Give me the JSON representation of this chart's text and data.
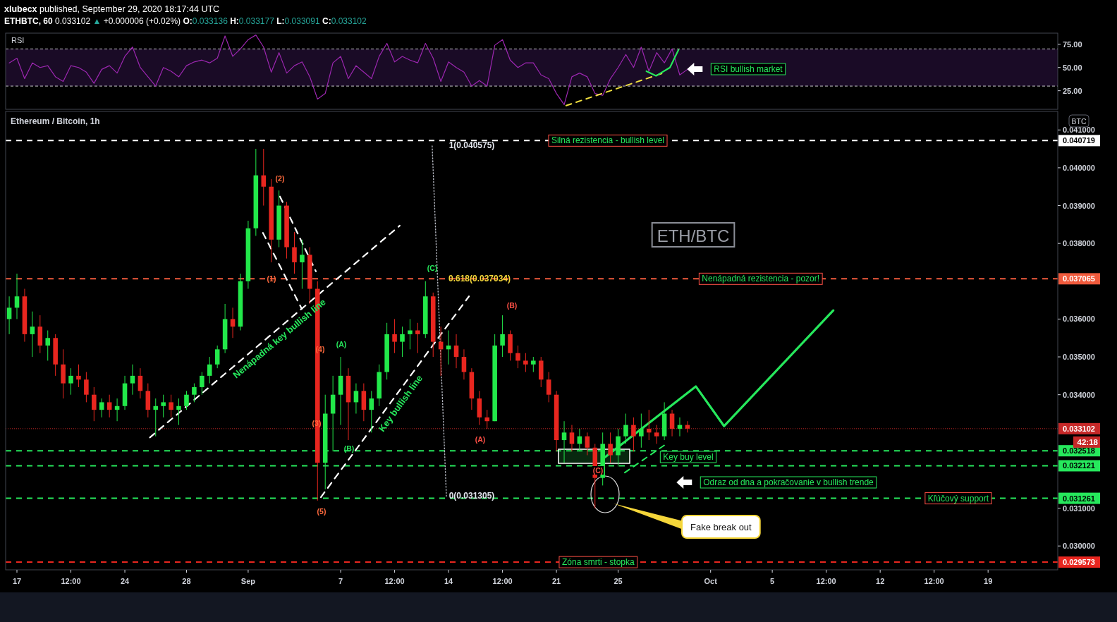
{
  "chart_data": [
    {
      "type": "line",
      "title": "xlubecx published, September 29, 2020 18:17:44 UTC",
      "subtitle": "ETHBTC, 60 0.033102 ▲ +0.000006 (+0.02%) O:0.033136 H:0.033177 L:0.033091 C:0.033102",
      "xlim": [
        "2020-08-16T06:25",
        "2020-10-23T12:30"
      ],
      "ylim": [
        5,
        87
      ],
      "yticks": [
        {
          "value": 25,
          "label": "25.00"
        },
        {
          "value": 50,
          "label": "50.00"
        },
        {
          "value": 75,
          "label": "75.00"
        }
      ],
      "tick_labels": "y",
      "x": [
        "2020-08-16T12:00",
        "2020-08-17T00:00",
        "2020-08-17T12:00",
        "2020-08-18T00:00",
        "2020-08-18T12:00",
        "2020-08-19T00:00",
        "2020-08-19T12:00",
        "2020-08-20T00:00",
        "2020-08-20T12:00",
        "2020-08-21T00:00",
        "2020-08-21T12:00",
        "2020-08-22T00:00",
        "2020-08-22T12:00",
        "2020-08-23T00:00",
        "2020-08-23T12:00",
        "2020-08-24T00:00",
        "2020-08-24T12:00",
        "2020-08-25T00:00",
        "2020-08-25T12:00",
        "2020-08-26T00:00",
        "2020-08-26T12:00",
        "2020-08-27T00:00",
        "2020-08-27T12:00",
        "2020-08-28T00:00",
        "2020-08-28T12:00",
        "2020-08-29T00:00",
        "2020-08-29T12:00",
        "2020-08-30T00:00",
        "2020-08-30T12:00",
        "2020-08-31T00:00",
        "2020-08-31T12:00",
        "2020-09-01T00:00",
        "2020-09-01T12:00",
        "2020-09-02T00:00",
        "2020-09-02T12:00",
        "2020-09-03T00:00",
        "2020-09-03T12:00",
        "2020-09-04T00:00",
        "2020-09-04T12:00",
        "2020-09-05T00:00",
        "2020-09-05T12:00",
        "2020-09-06T00:00",
        "2020-09-06T12:00",
        "2020-09-07T00:00",
        "2020-09-07T12:00",
        "2020-09-08T00:00",
        "2020-09-08T12:00",
        "2020-09-09T00:00",
        "2020-09-09T12:00",
        "2020-09-10T00:00",
        "2020-09-10T12:00",
        "2020-09-11T00:00",
        "2020-09-11T12:00",
        "2020-09-12T00:00",
        "2020-09-12T12:00",
        "2020-09-13T00:00",
        "2020-09-13T12:00",
        "2020-09-14T00:00",
        "2020-09-14T12:00",
        "2020-09-15T00:00",
        "2020-09-15T12:00",
        "2020-09-16T00:00",
        "2020-09-16T12:00",
        "2020-09-17T00:00",
        "2020-09-17T12:00",
        "2020-09-18T00:00",
        "2020-09-18T12:00",
        "2020-09-19T00:00",
        "2020-09-19T12:00",
        "2020-09-20T00:00",
        "2020-09-20T12:00",
        "2020-09-21T00:00",
        "2020-09-21T12:00",
        "2020-09-22T00:00",
        "2020-09-22T12:00",
        "2020-09-23T00:00",
        "2020-09-23T12:00",
        "2020-09-24T00:00",
        "2020-09-24T12:00",
        "2020-09-25T00:00",
        "2020-09-25T12:00",
        "2020-09-26T00:00",
        "2020-09-26T12:00",
        "2020-09-27T00:00",
        "2020-09-27T12:00",
        "2020-09-28T00:00",
        "2020-09-28T12:00",
        "2020-09-29T00:00",
        "2020-09-29T12:00"
      ],
      "series": [
        {
          "color": "#9c27b0",
          "values": [
            55,
            60,
            38,
            55,
            50,
            52,
            40,
            35,
            52,
            50,
            45,
            33,
            48,
            52,
            44,
            62,
            72,
            50,
            40,
            30,
            50,
            46,
            40,
            52,
            56,
            58,
            55,
            60,
            84,
            62,
            70,
            80,
            85,
            72,
            45,
            66,
            44,
            52,
            56,
            40,
            16,
            22,
            55,
            62,
            38,
            52,
            45,
            38,
            62,
            76,
            56,
            62,
            58,
            55,
            76,
            60,
            35,
            56,
            50,
            45,
            30,
            36,
            30,
            74,
            80,
            58,
            50,
            55,
            55,
            42,
            38,
            22,
            10,
            40,
            44,
            40,
            22,
            20,
            38,
            50,
            64,
            50,
            72,
            46,
            66,
            55,
            70,
            42,
            48
          ]
        },
        {
          "color": "#f0e040",
          "line_style": "dashed",
          "x": [
            "2020-09-21T15:00",
            "2020-09-27T22:00"
          ],
          "values": [
            9,
            44
          ]
        },
        {
          "color": "#26e85c",
          "x": [
            "2020-09-26T20:00",
            "2020-09-27T11:00",
            "2020-09-28T08:40",
            "2020-09-28T22:00"
          ],
          "values": [
            46,
            41,
            50,
            69
          ]
        }
      ],
      "bands": [
        {
          "axis": "y",
          "from": 30,
          "to": 70,
          "color": "#1a0b26"
        }
      ],
      "ref_lines": [
        {
          "axis": "y",
          "value": 70,
          "color": "#c8c8cc",
          "line_style": "dashed"
        },
        {
          "axis": "y",
          "value": 30,
          "color": "#c8c8cc",
          "line_style": "dashed"
        }
      ],
      "annotations": [
        "RSI",
        "RSI bullish market"
      ]
    },
    {
      "type": "candlestick",
      "title": "Ethereum / Bitcoin, 1h",
      "ylabel": "BTC",
      "xlim": [
        "2020-08-16T06:25",
        "2020-10-23T12:30"
      ],
      "ylim": [
        0.02937,
        0.04149
      ],
      "xticks": [
        {
          "value": "2020-08-17",
          "label": "17"
        },
        {
          "value": "2020-08-20T12:00",
          "label": "12:00"
        },
        {
          "value": "2020-08-24",
          "label": "24"
        },
        {
          "value": "2020-08-28",
          "label": "28"
        },
        {
          "value": "2020-09-01",
          "label": "Sep"
        },
        {
          "value": "2020-09-07",
          "label": "7"
        },
        {
          "value": "2020-09-10T12:00",
          "label": "12:00"
        },
        {
          "value": "2020-09-14",
          "label": "14"
        },
        {
          "value": "2020-09-17T12:00",
          "label": "12:00"
        },
        {
          "value": "2020-09-21",
          "label": "21"
        },
        {
          "value": "2020-09-25",
          "label": "25"
        },
        {
          "value": "2020-10-01",
          "label": "Oct"
        },
        {
          "value": "2020-10-05",
          "label": "5"
        },
        {
          "value": "2020-10-08T12:00",
          "label": "12:00"
        },
        {
          "value": "2020-10-12",
          "label": "12"
        },
        {
          "value": "2020-10-15T12:00",
          "label": "12:00"
        },
        {
          "value": "2020-10-19",
          "label": "19"
        }
      ],
      "yticks": [
        {
          "value": 0.03,
          "label": "0.030000"
        },
        {
          "value": 0.031,
          "label": "0.031000"
        },
        {
          "value": 0.034,
          "label": "0.034000"
        },
        {
          "value": 0.035,
          "label": "0.035000"
        },
        {
          "value": 0.036,
          "label": "0.036000"
        },
        {
          "value": 0.038,
          "label": "0.038000"
        },
        {
          "value": 0.039,
          "label": "0.039000"
        },
        {
          "value": 0.04,
          "label": "0.040000"
        },
        {
          "value": 0.041,
          "label": "0.041000"
        }
      ],
      "x": [
        "2020-08-16T12:00",
        "2020-08-17T00:00",
        "2020-08-17T12:00",
        "2020-08-18T00:00",
        "2020-08-18T12:00",
        "2020-08-19T00:00",
        "2020-08-19T12:00",
        "2020-08-20T00:00",
        "2020-08-20T12:00",
        "2020-08-21T00:00",
        "2020-08-21T12:00",
        "2020-08-22T00:00",
        "2020-08-22T12:00",
        "2020-08-23T00:00",
        "2020-08-23T12:00",
        "2020-08-24T00:00",
        "2020-08-24T12:00",
        "2020-08-25T00:00",
        "2020-08-25T12:00",
        "2020-08-26T00:00",
        "2020-08-26T12:00",
        "2020-08-27T00:00",
        "2020-08-27T12:00",
        "2020-08-28T00:00",
        "2020-08-28T12:00",
        "2020-08-29T00:00",
        "2020-08-29T12:00",
        "2020-08-30T00:00",
        "2020-08-30T12:00",
        "2020-08-31T00:00",
        "2020-08-31T12:00",
        "2020-09-01T00:00",
        "2020-09-01T12:00",
        "2020-09-02T00:00",
        "2020-09-02T12:00",
        "2020-09-03T00:00",
        "2020-09-03T12:00",
        "2020-09-04T00:00",
        "2020-09-04T12:00",
        "2020-09-05T00:00",
        "2020-09-05T12:00",
        "2020-09-06T00:00",
        "2020-09-06T12:00",
        "2020-09-07T00:00",
        "2020-09-07T12:00",
        "2020-09-08T00:00",
        "2020-09-08T12:00",
        "2020-09-09T00:00",
        "2020-09-09T12:00",
        "2020-09-10T00:00",
        "2020-09-10T12:00",
        "2020-09-11T00:00",
        "2020-09-11T12:00",
        "2020-09-12T00:00",
        "2020-09-12T12:00",
        "2020-09-13T00:00",
        "2020-09-13T12:00",
        "2020-09-14T00:00",
        "2020-09-14T12:00",
        "2020-09-15T00:00",
        "2020-09-15T12:00",
        "2020-09-16T00:00",
        "2020-09-16T12:00",
        "2020-09-17T00:00",
        "2020-09-17T12:00",
        "2020-09-18T00:00",
        "2020-09-18T12:00",
        "2020-09-19T00:00",
        "2020-09-19T12:00",
        "2020-09-20T00:00",
        "2020-09-20T12:00",
        "2020-09-21T00:00",
        "2020-09-21T12:00",
        "2020-09-22T00:00",
        "2020-09-22T12:00",
        "2020-09-23T00:00",
        "2020-09-23T12:00",
        "2020-09-24T00:00",
        "2020-09-24T12:00",
        "2020-09-25T00:00",
        "2020-09-25T12:00",
        "2020-09-26T00:00",
        "2020-09-26T12:00",
        "2020-09-27T00:00",
        "2020-09-27T12:00",
        "2020-09-28T00:00",
        "2020-09-28T12:00",
        "2020-09-29T00:00",
        "2020-09-29T12:00"
      ],
      "series": [
        {
          "ohlc": [
            [
              0.036,
              0.0366,
              0.0356,
              0.0363
            ],
            [
              0.0363,
              0.0372,
              0.036,
              0.0366
            ],
            [
              0.0366,
              0.0368,
              0.0354,
              0.0356
            ],
            [
              0.0356,
              0.0362,
              0.035,
              0.0358
            ],
            [
              0.0358,
              0.0361,
              0.0351,
              0.0353
            ],
            [
              0.0353,
              0.0357,
              0.0349,
              0.0355
            ],
            [
              0.0355,
              0.0356,
              0.0345,
              0.0348
            ],
            [
              0.0348,
              0.0352,
              0.0339,
              0.0343
            ],
            [
              0.0343,
              0.0347,
              0.034,
              0.0345
            ],
            [
              0.0345,
              0.0348,
              0.0342,
              0.0344
            ],
            [
              0.0344,
              0.0346,
              0.0338,
              0.034
            ],
            [
              0.034,
              0.0342,
              0.0333,
              0.0336
            ],
            [
              0.0336,
              0.0339,
              0.0334,
              0.0338
            ],
            [
              0.0338,
              0.034,
              0.0334,
              0.0336
            ],
            [
              0.0336,
              0.0339,
              0.0333,
              0.0337
            ],
            [
              0.0337,
              0.0345,
              0.0336,
              0.0343
            ],
            [
              0.0343,
              0.0348,
              0.034,
              0.0345
            ],
            [
              0.0345,
              0.0347,
              0.0339,
              0.0341
            ],
            [
              0.0341,
              0.0343,
              0.0334,
              0.0336
            ],
            [
              0.0336,
              0.0339,
              0.0329,
              0.0337
            ],
            [
              0.0337,
              0.034,
              0.0334,
              0.0338
            ],
            [
              0.0338,
              0.034,
              0.0334,
              0.0336
            ],
            [
              0.0336,
              0.0339,
              0.0332,
              0.0337
            ],
            [
              0.0337,
              0.0341,
              0.0336,
              0.034
            ],
            [
              0.034,
              0.0343,
              0.0338,
              0.0342
            ],
            [
              0.0342,
              0.0346,
              0.034,
              0.0345
            ],
            [
              0.0345,
              0.035,
              0.0343,
              0.0348
            ],
            [
              0.0348,
              0.0353,
              0.0347,
              0.0352
            ],
            [
              0.0352,
              0.0364,
              0.0351,
              0.036
            ],
            [
              0.036,
              0.0363,
              0.0355,
              0.0358
            ],
            [
              0.0358,
              0.0372,
              0.0357,
              0.037
            ],
            [
              0.037,
              0.0386,
              0.0368,
              0.0384
            ],
            [
              0.0384,
              0.0405,
              0.0382,
              0.0398
            ],
            [
              0.0398,
              0.0405,
              0.039,
              0.0395
            ],
            [
              0.0395,
              0.0397,
              0.0375,
              0.0381
            ],
            [
              0.0381,
              0.0394,
              0.0379,
              0.039
            ],
            [
              0.039,
              0.0391,
              0.0376,
              0.0379
            ],
            [
              0.0379,
              0.0383,
              0.0372,
              0.0375
            ],
            [
              0.0375,
              0.0381,
              0.0368,
              0.0377
            ],
            [
              0.0377,
              0.0379,
              0.0364,
              0.0368
            ],
            [
              0.0368,
              0.037,
              0.0312,
              0.0322
            ],
            [
              0.0322,
              0.034,
              0.0315,
              0.0335
            ],
            [
              0.0335,
              0.0345,
              0.0325,
              0.034
            ],
            [
              0.034,
              0.035,
              0.0332,
              0.0345
            ],
            [
              0.0345,
              0.0347,
              0.0328,
              0.0338
            ],
            [
              0.0338,
              0.0343,
              0.0335,
              0.0341
            ],
            [
              0.0341,
              0.0343,
              0.0333,
              0.0336
            ],
            [
              0.0336,
              0.0341,
              0.033,
              0.0339
            ],
            [
              0.0339,
              0.0348,
              0.0337,
              0.0346
            ],
            [
              0.0346,
              0.0359,
              0.0344,
              0.0356
            ],
            [
              0.0356,
              0.036,
              0.0351,
              0.0354
            ],
            [
              0.0354,
              0.0358,
              0.035,
              0.0356
            ],
            [
              0.0356,
              0.036,
              0.0352,
              0.0357
            ],
            [
              0.0357,
              0.0359,
              0.0351,
              0.0356
            ],
            [
              0.0356,
              0.037,
              0.0355,
              0.0366
            ],
            [
              0.0366,
              0.0367,
              0.035,
              0.0354
            ],
            [
              0.0354,
              0.0358,
              0.0345,
              0.0352
            ],
            [
              0.0352,
              0.0357,
              0.0348,
              0.0353
            ],
            [
              0.0353,
              0.0356,
              0.0347,
              0.035
            ],
            [
              0.035,
              0.0352,
              0.0344,
              0.0346
            ],
            [
              0.0346,
              0.0347,
              0.0336,
              0.0339
            ],
            [
              0.0339,
              0.0341,
              0.0332,
              0.0334
            ],
            [
              0.0334,
              0.0336,
              0.0331,
              0.0333
            ],
            [
              0.0333,
              0.0356,
              0.0333,
              0.0353
            ],
            [
              0.0353,
              0.0361,
              0.035,
              0.0356
            ],
            [
              0.0356,
              0.0357,
              0.0349,
              0.0351
            ],
            [
              0.0351,
              0.0353,
              0.0347,
              0.0349
            ],
            [
              0.0349,
              0.0351,
              0.0346,
              0.0348
            ],
            [
              0.0348,
              0.035,
              0.0346,
              0.0349
            ],
            [
              0.0349,
              0.035,
              0.0342,
              0.0344
            ],
            [
              0.0344,
              0.0346,
              0.0338,
              0.034
            ],
            [
              0.034,
              0.0341,
              0.0325,
              0.0328
            ],
            [
              0.0328,
              0.0333,
              0.0322,
              0.033
            ],
            [
              0.033,
              0.0332,
              0.0325,
              0.0327
            ],
            [
              0.0327,
              0.0331,
              0.0325,
              0.0329
            ],
            [
              0.0329,
              0.033,
              0.0324,
              0.0326
            ],
            [
              0.0326,
              0.0327,
              0.031,
              0.0318
            ],
            [
              0.0318,
              0.033,
              0.0316,
              0.0327
            ],
            [
              0.0327,
              0.033,
              0.0322,
              0.0324
            ],
            [
              0.0324,
              0.0331,
              0.0321,
              0.0329
            ],
            [
              0.0329,
              0.0335,
              0.0327,
              0.0332
            ],
            [
              0.0332,
              0.0334,
              0.0325,
              0.0329
            ],
            [
              0.0329,
              0.0335,
              0.0326,
              0.0331
            ],
            [
              0.0331,
              0.0336,
              0.0328,
              0.033
            ],
            [
              0.033,
              0.0332,
              0.0327,
              0.0329
            ],
            [
              0.0329,
              0.0338,
              0.0328,
              0.0335
            ],
            [
              0.0335,
              0.0336,
              0.0329,
              0.0331
            ],
            [
              0.0331,
              0.0334,
              0.0329,
              0.0332
            ],
            [
              0.0332,
              0.0333,
              0.033,
              0.033102
            ]
          ]
        },
        {
          "type": "line",
          "color": "#ffffff",
          "line_style": "dashed",
          "x": [
            "2020-08-25T15:00",
            "2020-09-10T20:00"
          ],
          "values": [
            0.03287,
            0.03847
          ]
        },
        {
          "type": "line",
          "color": "#ffffff",
          "line_style": "dashed",
          "x": [
            "2020-09-03T01:30",
            "2020-09-05T09:30"
          ],
          "values": [
            0.03924,
            0.03726
          ]
        },
        {
          "type": "line",
          "color": "#ffffff",
          "line_style": "dashed",
          "x": [
            "2020-09-01T23:00",
            "2020-09-04T11:30"
          ],
          "values": [
            0.03828,
            0.03627
          ]
        },
        {
          "type": "line",
          "color": "#ffffff",
          "line_style": "dashed",
          "x": [
            "2020-09-05T17:15",
            "2020-09-15T07:45"
          ],
          "values": [
            0.03129,
            0.0366
          ]
        },
        {
          "type": "line",
          "color": "#b2b5be",
          "line_style": "dotted",
          "x": [
            "2020-09-12T22:30",
            "2020-09-13T20:40"
          ],
          "values": [
            0.040575,
            0.031305
          ]
        },
        {
          "type": "line",
          "color": "#26e85c",
          "line_style": "dashed",
          "x": [
            "2020-09-25T10:20",
            "2020-09-28T03:00"
          ],
          "values": [
            0.03194,
            0.0327
          ]
        },
        {
          "type": "line",
          "color": "#26e85c",
          "x": [
            "2020-09-24T03:40",
            "2020-09-30T01:00",
            "2020-10-01T21:00",
            "2020-10-08T23:00"
          ],
          "values": [
            0.03235,
            0.03422,
            0.03317,
            0.03623
          ]
        }
      ],
      "ref_lines": [
        {
          "axis": "y",
          "value": 0.040719,
          "label": "0.040719",
          "color": "#ffffff",
          "line_style": "dashed"
        },
        {
          "axis": "y",
          "value": 0.037065,
          "label": "0.037065",
          "color": "#f05a3c",
          "line_style": "dashed"
        },
        {
          "axis": "y",
          "value": 0.033102,
          "label": "0.033102",
          "color": "#c62828",
          "line_style": "dotted"
        },
        {
          "axis": "y",
          "value": 0.032518,
          "label": "0.032518",
          "color": "#26e85c",
          "line_style": "dashed"
        },
        {
          "axis": "y",
          "value": 0.032121,
          "label": "0.032121",
          "color": "#26e85c",
          "line_style": "dashed"
        },
        {
          "axis": "y",
          "value": 0.031261,
          "label": "0.031261",
          "color": "#26e85c",
          "line_style": "dashed"
        },
        {
          "axis": "y",
          "value": 0.029573,
          "label": "0.029573",
          "color": "#e8261f",
          "line_style": "dashed"
        }
      ],
      "annotations": [
        "(1)",
        "(2)",
        "(3)",
        "(4)",
        "(5)",
        "(A)",
        "(B)",
        "(C)",
        "(A)",
        "(B)",
        "(C)",
        "1(0.040575)",
        "0.618(0.037034)",
        "0(0.031305)",
        "Nenápadná key bullish line",
        "Key bullish line",
        {
          "text": "Silná rezistencia - bullish level",
          "x": "2020-09-24T08:00",
          "y": 0.040719
        },
        {
          "text": "Nenápadná rezistencia - pozor!",
          "x": "2020-10-04T06:00",
          "y": 0.037065
        },
        "Key buy level",
        "Odraz od dna a pokračovanie v bullish trende",
        {
          "text": "Kľúčový support",
          "x": "2020-10-17T01:40",
          "y": 0.031261
        },
        {
          "text": "Zóna smrti - stopka",
          "x": "2020-09-23T17:00",
          "y": 0.029573
        },
        "ETH/BTC",
        "Fake break out",
        "42:18"
      ]
    }
  ]
}
